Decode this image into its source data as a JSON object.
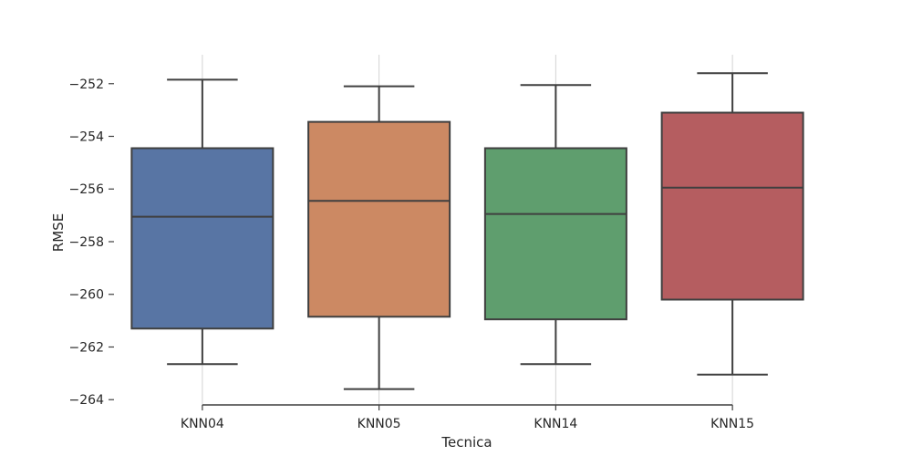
{
  "chart_data": {
    "type": "box",
    "title": "",
    "xlabel": "Tecnica",
    "ylabel": "RMSE",
    "ylim": [
      -264.2,
      -250.9
    ],
    "yticks": [
      -252,
      -254,
      -256,
      -258,
      -260,
      -262,
      -264
    ],
    "ytick_labels": [
      "−252",
      "−254",
      "−256",
      "−258",
      "−260",
      "−262",
      "−264"
    ],
    "grid": "vertical",
    "categories": [
      "KNN04",
      "KNN05",
      "KNN14",
      "KNN15"
    ],
    "boxes": [
      {
        "name": "KNN04",
        "whisker_low": -262.65,
        "q1": -261.3,
        "median": -257.05,
        "q3": -254.45,
        "whisker_high": -251.85,
        "color": "#5875a4"
      },
      {
        "name": "KNN05",
        "whisker_low": -263.6,
        "q1": -260.85,
        "median": -256.45,
        "q3": -253.45,
        "whisker_high": -252.1,
        "color": "#cc8963"
      },
      {
        "name": "KNN14",
        "whisker_low": -262.65,
        "q1": -260.95,
        "median": -256.95,
        "q3": -254.45,
        "whisker_high": -252.05,
        "color": "#5f9e6e"
      },
      {
        "name": "KNN15",
        "whisker_low": -263.05,
        "q1": -260.2,
        "median": -255.95,
        "q3": -253.1,
        "whisker_high": -251.6,
        "color": "#b55d60"
      }
    ]
  }
}
